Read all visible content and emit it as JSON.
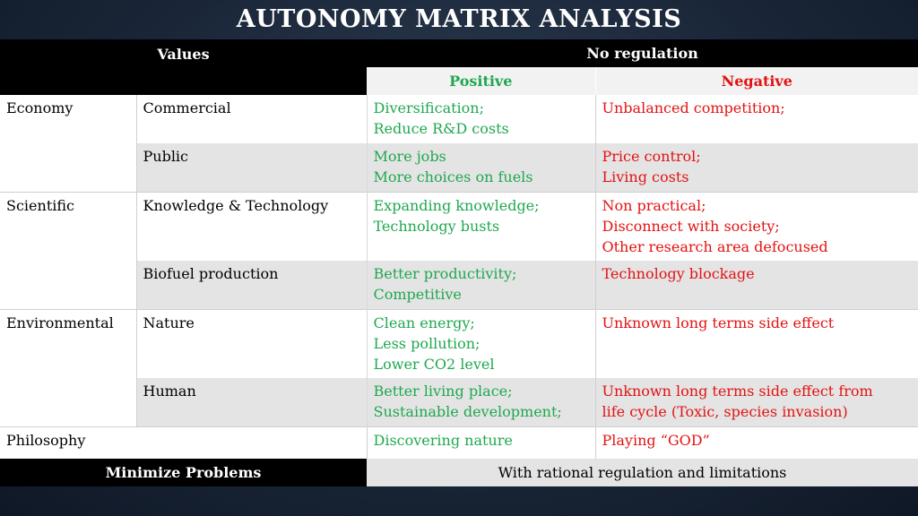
{
  "title": "AUTONOMY MATRIX ANALYSIS",
  "header": {
    "values_label": "Values",
    "no_regulation_label": "No regulation",
    "positive_label": "Positive",
    "negative_label": "Negative"
  },
  "rows": [
    {
      "category": "Economy",
      "subcategory": "Commercial",
      "positive": [
        "Diversification;",
        "Reduce R&D costs"
      ],
      "negative": [
        "Unbalanced competition;"
      ]
    },
    {
      "category": "",
      "subcategory": "Public",
      "positive": [
        "More jobs",
        "More choices on fuels"
      ],
      "negative": [
        "Price control;",
        "Living costs"
      ]
    },
    {
      "category": "Scientific",
      "subcategory": "Knowledge &  Technology",
      "positive": [
        "Expanding knowledge;",
        "Technology busts"
      ],
      "negative": [
        "Non practical;",
        "Disconnect with society;",
        "Other research area defocused"
      ]
    },
    {
      "category": "",
      "subcategory": "Biofuel production",
      "positive": [
        "Better productivity;",
        "Competitive"
      ],
      "negative": [
        "Technology blockage"
      ]
    },
    {
      "category": "Environmental",
      "subcategory": "Nature",
      "positive": [
        "Clean energy;",
        "Less pollution;",
        "Lower CO2 level"
      ],
      "negative": [
        "Unknown long terms side effect"
      ]
    },
    {
      "category": "",
      "subcategory": "Human",
      "positive": [
        "Better living place;",
        "Sustainable development;"
      ],
      "negative": [
        "Unknown long terms side effect from",
        "life cycle (Toxic, species invasion)"
      ]
    },
    {
      "category": "Philosophy",
      "subcategory": "",
      "positive": [
        "Discovering nature"
      ],
      "negative": [
        "Playing “GOD”"
      ]
    }
  ],
  "footer": {
    "left_label": "Minimize Problems",
    "right_label": "With rational regulation and limitations"
  }
}
